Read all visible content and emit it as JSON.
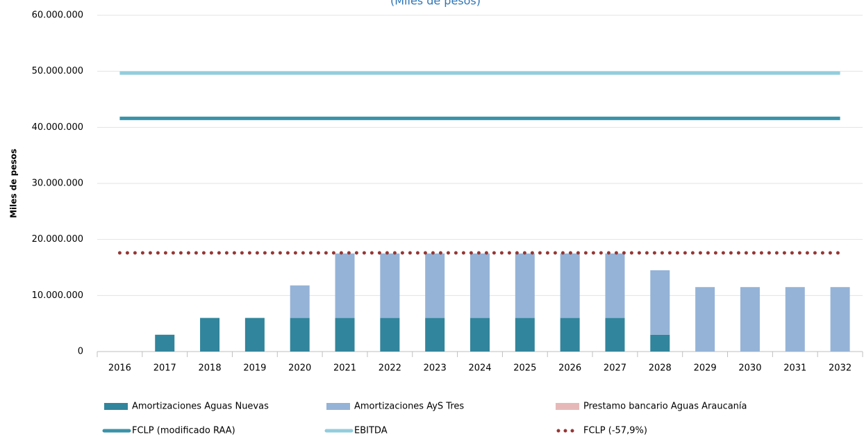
{
  "chart_data": {
    "type": "bar",
    "subtitle": "(Miles de pesos)",
    "y_label": "Miles de pesos",
    "categories": [
      "2016",
      "2017",
      "2018",
      "2019",
      "2020",
      "2021",
      "2022",
      "2023",
      "2024",
      "2025",
      "2026",
      "2027",
      "2028",
      "2029",
      "2030",
      "2031",
      "2032"
    ],
    "stacked": true,
    "grid": true,
    "ylim": [
      0,
      60000000
    ],
    "yticks": [
      0,
      {
        "value": 10000000,
        "label": "10.000.000"
      },
      {
        "value": 20000000,
        "label": "20.000.000"
      },
      {
        "value": 30000000,
        "label": "30.000.000"
      },
      {
        "value": 40000000,
        "label": "40.000.000"
      },
      {
        "value": 50000000,
        "label": "50.000.000"
      },
      {
        "value": 60000000,
        "label": "60.000.000"
      }
    ],
    "series": [
      {
        "name": "Amortizaciones Aguas Nuevas",
        "kind": "bar",
        "color": "#31859c",
        "values": [
          0,
          3000000,
          6000000,
          6000000,
          6000000,
          6000000,
          6000000,
          6000000,
          6000000,
          6000000,
          6000000,
          6000000,
          3000000,
          0,
          0,
          0,
          0
        ]
      },
      {
        "name": "Amortizaciones AyS Tres",
        "kind": "bar",
        "color": "#95b3d7",
        "values": [
          0,
          0,
          0,
          0,
          5800000,
          11500000,
          11500000,
          11500000,
          11500000,
          11500000,
          11500000,
          11500000,
          11500000,
          11500000,
          11500000,
          11500000,
          11500000
        ]
      },
      {
        "name": "Prestamo bancario Aguas Araucanía",
        "kind": "bar",
        "color": "#e6b9b8",
        "values": [
          0,
          0,
          0,
          0,
          0,
          0,
          0,
          0,
          0,
          0,
          0,
          0,
          0,
          0,
          0,
          0,
          0
        ]
      },
      {
        "name": "FCLP (modificado RAA)",
        "kind": "line",
        "color": "#3a93a8",
        "dash": "solid",
        "values": [
          41600000,
          41600000,
          41600000,
          41600000,
          41600000,
          41600000,
          41600000,
          41600000,
          41600000,
          41600000,
          41600000,
          41600000,
          41600000,
          41600000,
          41600000,
          41600000,
          41600000
        ]
      },
      {
        "name": "EBITDA",
        "kind": "line",
        "color": "#92cddc",
        "dash": "solid",
        "values": [
          49700000,
          49700000,
          49700000,
          49700000,
          49700000,
          49700000,
          49700000,
          49700000,
          49700000,
          49700000,
          49700000,
          49700000,
          49700000,
          49700000,
          49700000,
          49700000,
          49700000
        ]
      },
      {
        "name": "FCLP (-57,9%)",
        "kind": "line",
        "color": "#953735",
        "dash": "dotted",
        "values": [
          17600000,
          17600000,
          17600000,
          17600000,
          17600000,
          17600000,
          17600000,
          17600000,
          17600000,
          17600000,
          17600000,
          17600000,
          17600000,
          17600000,
          17600000,
          17600000,
          17600000
        ]
      }
    ]
  }
}
